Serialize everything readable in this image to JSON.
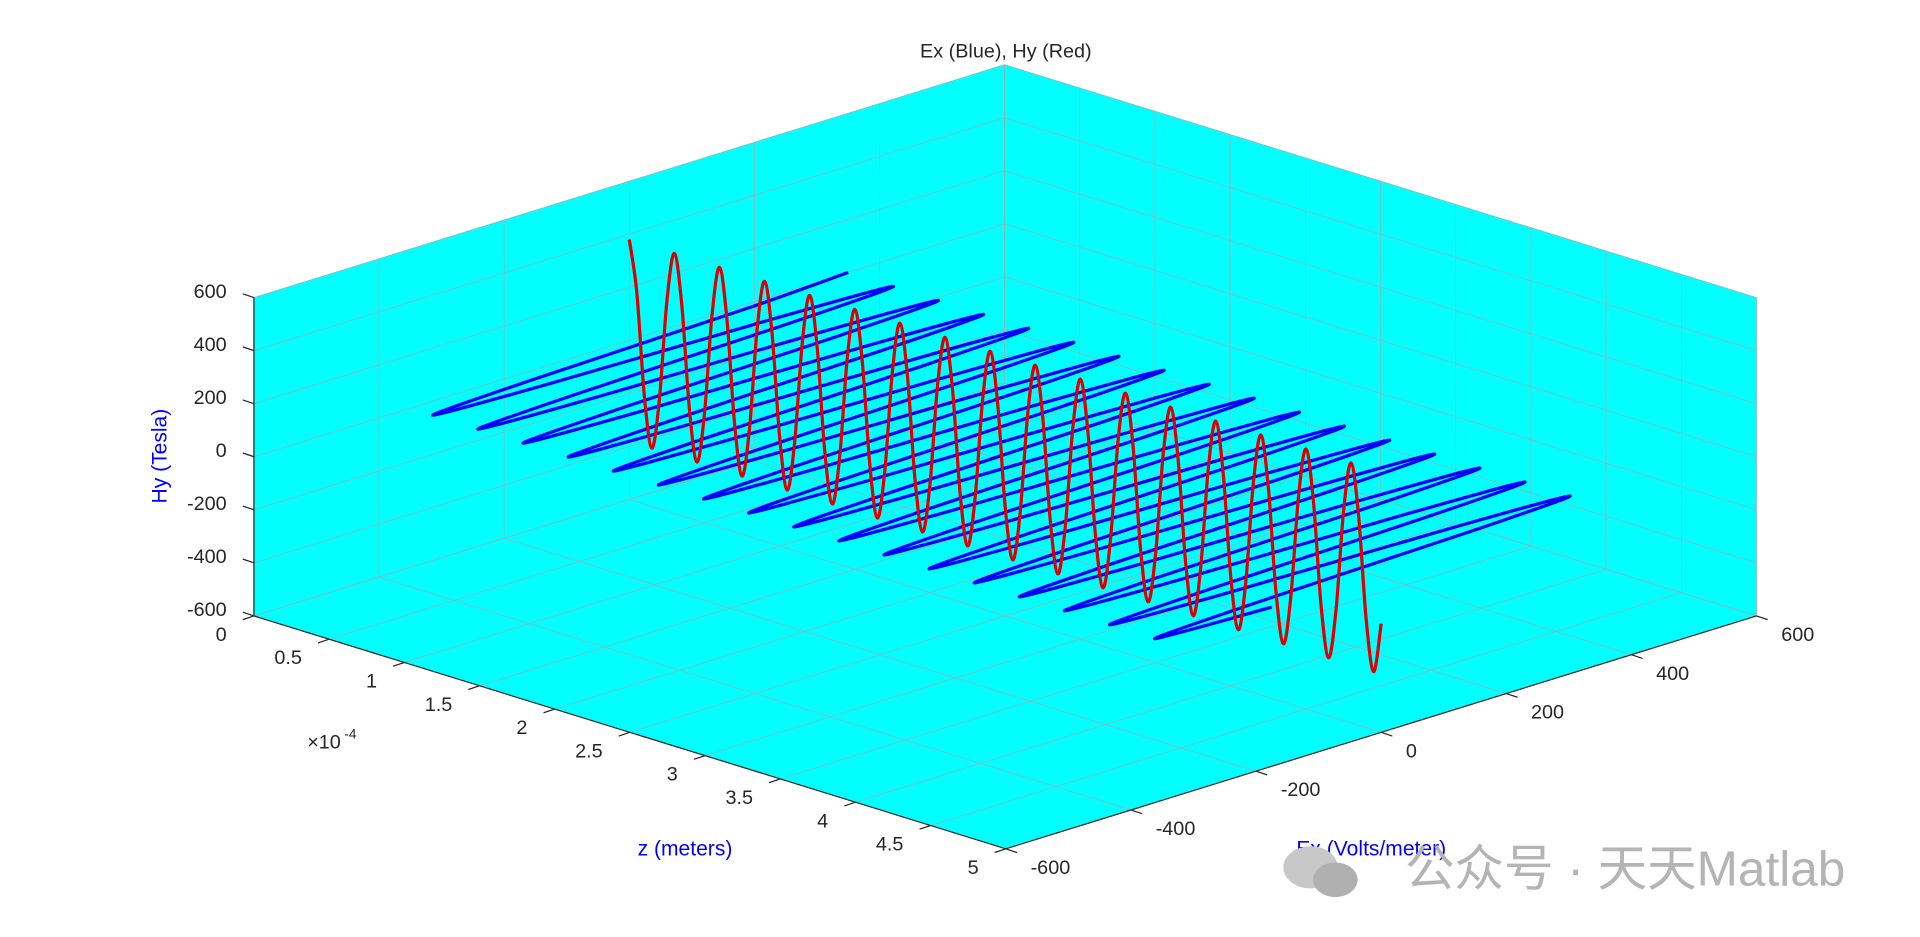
{
  "chart_data": {
    "type": "line3d",
    "title": "Ex (Blue), Hy (Red)",
    "x": [
      0,
      5e-06,
      1e-05,
      1.5e-05,
      2e-05,
      2.5e-05,
      3e-05,
      3.5e-05,
      4e-05,
      4.5e-05,
      5e-05,
      5.5e-05,
      6e-05,
      6.5e-05,
      7e-05,
      7.5e-05,
      8e-05,
      8.5e-05,
      9e-05,
      9.5e-05,
      0.0001,
      0.000105,
      0.00011,
      0.000115,
      0.00012,
      0.000125,
      0.00013,
      0.000135,
      0.00014,
      0.000145,
      0.00015,
      0.000155,
      0.00016,
      0.000165,
      0.00017,
      0.000175,
      0.00018,
      0.000185,
      0.00019,
      0.000195,
      0.0002,
      0.000205,
      0.00021,
      0.000215,
      0.00022,
      0.000225,
      0.00023,
      0.000235,
      0.00024,
      0.000245,
      0.00025,
      0.000255,
      0.00026,
      0.000265,
      0.00027,
      0.000275,
      0.00028,
      0.000285,
      0.00029,
      0.000295,
      0.0003,
      0.000305,
      0.00031,
      0.000315,
      0.00032,
      0.000325,
      0.00033,
      0.000335,
      0.00034,
      0.000345,
      0.00035,
      0.000355,
      0.00036,
      0.000365,
      0.00037,
      0.000375,
      0.00038,
      0.000385,
      0.00039,
      0.000395,
      0.0004,
      0.000405,
      0.00041,
      0.000415,
      0.00042,
      0.000425,
      0.00043,
      0.000435,
      0.00044,
      0.000445,
      0.00045,
      0.000455,
      0.00046,
      0.000465,
      0.00047,
      0.000475,
      0.00048,
      0.000485,
      0.00049,
      0.000495,
      0.0005
    ],
    "series": [
      {
        "color": "#0000ff",
        "dim": "y",
        "values": [
          350,
          175,
          -175,
          -350,
          -175,
          175,
          350,
          175,
          -175,
          -350,
          -175,
          175,
          350,
          175,
          -175,
          -350,
          -175,
          175,
          350,
          175,
          -175,
          -350,
          -175,
          175,
          350,
          175,
          -175,
          -350,
          -175,
          175,
          350,
          175,
          -175,
          -350,
          -175,
          175,
          350,
          175,
          -175,
          -350,
          -175,
          175,
          350,
          175,
          -175,
          -350,
          -175,
          175,
          350,
          175,
          -175,
          -350,
          -175,
          175,
          350,
          175,
          -175,
          -350,
          -175,
          175,
          350,
          175,
          -175,
          -350,
          -175,
          175,
          350,
          175,
          -175,
          -350,
          -175,
          175,
          350,
          175,
          -175,
          -350,
          -175,
          175,
          350,
          175,
          -175,
          -350,
          -175,
          175,
          350,
          175,
          -175,
          -350,
          -175,
          175,
          350,
          175,
          -175,
          -350,
          -175,
          175,
          350,
          175,
          -175,
          -350,
          -175
        ]
      },
      {
        "color": "#dd0000",
        "dim": "z",
        "values": [
          380,
          190,
          -190,
          -380,
          -190,
          190,
          380,
          190,
          -190,
          -380,
          -190,
          190,
          380,
          190,
          -190,
          -380,
          -190,
          190,
          380,
          190,
          -190,
          -380,
          -190,
          190,
          380,
          190,
          -190,
          -380,
          -190,
          190,
          380,
          190,
          -190,
          -380,
          -190,
          190,
          380,
          190,
          -190,
          -380,
          -190,
          190,
          380,
          190,
          -190,
          -380,
          -190,
          190,
          380,
          190,
          -190,
          -380,
          -190,
          190,
          380,
          190,
          -190,
          -380,
          -190,
          190,
          380,
          190,
          -190,
          -380,
          -190,
          190,
          380,
          190,
          -190,
          -380,
          -190,
          190,
          380,
          190,
          -190,
          -380,
          -190,
          190,
          380,
          190,
          -190,
          -380,
          -190,
          190,
          380,
          190,
          -190,
          -380,
          -190,
          190,
          380,
          190,
          -190,
          -380,
          -190,
          190,
          380,
          190,
          -190,
          -380,
          -190
        ]
      }
    ],
    "xlim": [
      0,
      0.0005
    ],
    "xticks": [
      0,
      {
        "value": 5e-05,
        "label": "0.5"
      },
      {
        "value": 0.0001,
        "label": "1"
      },
      {
        "value": 0.00015,
        "label": "1.5"
      },
      {
        "value": 0.0002,
        "label": "2"
      },
      {
        "value": 0.00025,
        "label": "2.5"
      },
      {
        "value": 0.0003,
        "label": "3"
      },
      {
        "value": 0.00035,
        "label": "3.5"
      },
      {
        "value": 0.0004,
        "label": "4"
      },
      {
        "value": 0.00045,
        "label": "4.5"
      },
      {
        "value": 0.0005,
        "label": "5"
      }
    ],
    "x_exponent": {
      "base": "×10",
      "power": "-4"
    },
    "ylim": [
      -600,
      600
    ],
    "yticks": [
      -600,
      -400,
      -200,
      0,
      200,
      400,
      600
    ],
    "zlim": [
      -600,
      600
    ],
    "zticks": [
      -600,
      -400,
      -200,
      0,
      200,
      400,
      600
    ],
    "xlabel": "z (meters)",
    "ylabel": "Ex (Volts/meter)",
    "zlabel": "Hy (Tesla)",
    "label_color": "#0000ff",
    "pane_color": "#00ffff",
    "grid": true,
    "watermark": "公众号 · 天天Matlab"
  }
}
